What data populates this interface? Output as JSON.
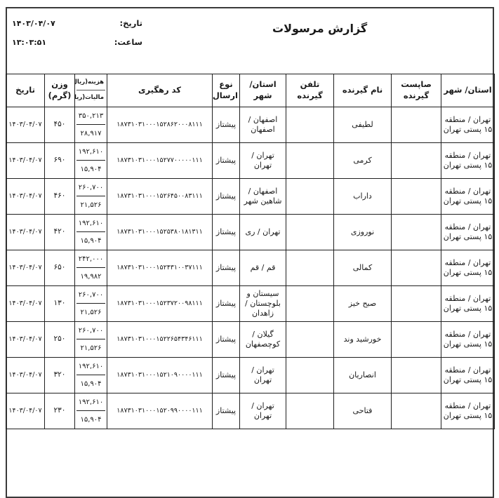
{
  "page": {
    "title": "گزارش مرسولات",
    "date_label": "تاریخ:",
    "date_value": "۱۴۰۳/۰۴/۰۷",
    "time_label": "ساعت:",
    "time_value": "۱۳:۰۳:۵۱"
  },
  "table": {
    "headers": {
      "origin": "استان/ شهر",
      "sahebpost": "صاپست گیرنده",
      "receiver_name": "نام گیرنده",
      "receiver_phone": "تلفن گیرنده",
      "dest": "استان/ شهر",
      "send_type": "نوع ارسال",
      "tracking": "کد رهگیری",
      "cost": "هزینه(ریال)",
      "tax": "مالیات(ریال)",
      "weight": "وزن (گرم)",
      "date": "تاریخ"
    },
    "rows": [
      {
        "origin": "تهران / منطقه ۱۵ پستی تهران",
        "sahebpost": "",
        "receiver_name": "لطیفی",
        "receiver_phone": "",
        "dest": "اصفهان / اصفهان",
        "send_type": "پیشتاز",
        "tracking": "۱۸۷۳۱۰۳۱۰۰۰۱۵۲۸۶۲۰۰۰۸۱۱۱",
        "cost": "۳۵۰,۲۱۳",
        "tax": "۲۸,۹۱۷",
        "weight": "۴۵۰",
        "date": "۱۴۰۳/۰۴/۰۷"
      },
      {
        "origin": "تهران / منطقه ۱۵ پستی تهران",
        "sahebpost": "",
        "receiver_name": "کرمی",
        "receiver_phone": "",
        "dest": "تهران / تهران",
        "send_type": "پیشتاز",
        "tracking": "۱۸۷۳۱۰۳۱۰۰۰۱۵۲۷۷۰۰۰۰۰۱۱۱",
        "cost": "۱۹۲,۶۱۰",
        "tax": "۱۵,۹۰۴",
        "weight": "۶۹۰",
        "date": "۱۴۰۳/۰۴/۰۷"
      },
      {
        "origin": "تهران / منطقه ۱۵ پستی تهران",
        "sahebpost": "",
        "receiver_name": "داراب",
        "receiver_phone": "",
        "dest": "اصفهان / شاهین شهر",
        "send_type": "پیشتاز",
        "tracking": "۱۸۷۳۱۰۳۱۰۰۰۱۵۲۶۴۵۰۰۸۳۱۱۱",
        "cost": "۲۶۰,۷۰۰",
        "tax": "۲۱,۵۲۶",
        "weight": "۴۶۰",
        "date": "۱۴۰۳/۰۴/۰۷"
      },
      {
        "origin": "تهران / منطقه ۱۵ پستی تهران",
        "sahebpost": "",
        "receiver_name": "نوروزی",
        "receiver_phone": "",
        "dest": "تهران / ری",
        "send_type": "پیشتاز",
        "tracking": "۱۸۷۳۱۰۳۱۰۰۰۱۵۲۵۳۸۰۱۸۱۳۱۱",
        "cost": "۱۹۲,۶۱۰",
        "tax": "۱۵,۹۰۴",
        "weight": "۴۲۰",
        "date": "۱۴۰۳/۰۴/۰۷"
      },
      {
        "origin": "تهران / منطقه ۱۵ پستی تهران",
        "sahebpost": "",
        "receiver_name": "کمالی",
        "receiver_phone": "",
        "dest": "قم / قم",
        "send_type": "پیشتاز",
        "tracking": "۱۸۷۳۱۰۳۱۰۰۰۱۵۲۴۳۱۰۰۳۷۱۱۱",
        "cost": "۲۴۲,۰۰۰",
        "tax": "۱۹,۹۸۲",
        "weight": "۶۵۰",
        "date": "۱۴۰۳/۰۴/۰۷"
      },
      {
        "origin": "تهران / منطقه ۱۵ پستی تهران",
        "sahebpost": "",
        "receiver_name": "صبح خیز",
        "receiver_phone": "",
        "dest": "سیستان و بلوچستان / زاهدان",
        "send_type": "پیشتاز",
        "tracking": "۱۸۷۳۱۰۳۱۰۰۰۱۵۲۳۷۲۰۰۹۸۱۱۱",
        "cost": "۲۶۰,۷۰۰",
        "tax": "۲۱,۵۲۶",
        "weight": "۱۳۰",
        "date": "۱۴۰۳/۰۴/۰۷"
      },
      {
        "origin": "تهران / منطقه ۱۵ پستی تهران",
        "sahebpost": "",
        "receiver_name": "خورشید وند",
        "receiver_phone": "",
        "dest": "گیلان / کوچصفهان",
        "send_type": "پیشتاز",
        "tracking": "۱۸۷۳۱۰۳۱۰۰۰۱۵۲۲۶۵۴۳۴۶۱۱۱",
        "cost": "۲۶۰,۷۰۰",
        "tax": "۲۱,۵۲۶",
        "weight": "۲۵۰",
        "date": "۱۴۰۳/۰۴/۰۷"
      },
      {
        "origin": "تهران / منطقه ۱۵ پستی تهران",
        "sahebpost": "",
        "receiver_name": "انصاریان",
        "receiver_phone": "",
        "dest": "تهران / تهران",
        "send_type": "پیشتاز",
        "tracking": "۱۸۷۳۱۰۳۱۰۰۰۱۵۲۱۰۹۰۰۰۰۱۱۱",
        "cost": "۱۹۲,۶۱۰",
        "tax": "۱۵,۹۰۴",
        "weight": "۳۲۰",
        "date": "۱۴۰۳/۰۴/۰۷"
      },
      {
        "origin": "تهران / منطقه ۱۵ پستی تهران",
        "sahebpost": "",
        "receiver_name": "فتاحی",
        "receiver_phone": "",
        "dest": "تهران / تهران",
        "send_type": "پیشتاز",
        "tracking": "۱۸۷۳۱۰۳۱۰۰۰۱۵۲۰۹۹۰۰۰۰۱۱۱",
        "cost": "۱۹۲,۶۱۰",
        "tax": "۱۵,۹۰۴",
        "weight": "۲۳۰",
        "date": "۱۴۰۳/۰۴/۰۷"
      }
    ]
  }
}
